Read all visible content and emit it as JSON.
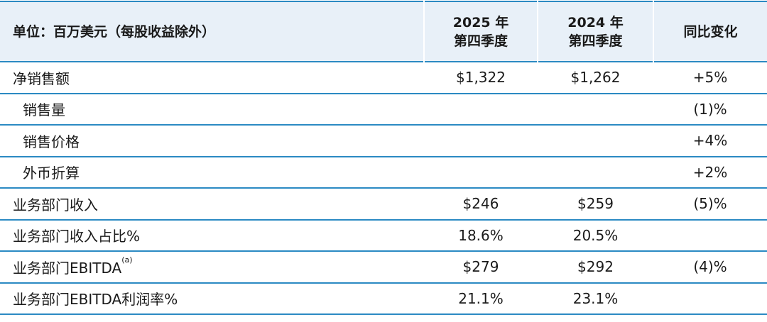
{
  "header": {
    "unit_label": "单位：百万美元（每股收益除外）",
    "col1": [
      "2025 年",
      "第四季度"
    ],
    "col2": [
      "2024 年",
      "第四季度"
    ],
    "col3": "同比变化"
  },
  "rows": [
    {
      "label": "净销售额",
      "q4_2025": "$1,322",
      "q4_2024": "$1,262",
      "change": "+5%"
    },
    {
      "label": "销售量",
      "q4_2025": "",
      "q4_2024": "",
      "change": "(1)%"
    },
    {
      "label": "销售价格",
      "q4_2025": "",
      "q4_2024": "",
      "change": "+4%"
    },
    {
      "label": "外币折算",
      "q4_2025": "",
      "q4_2024": "",
      "change": "+2%"
    },
    {
      "label": "业务部门收入",
      "q4_2025": "$246",
      "q4_2024": "$259",
      "change": "(5)%"
    },
    {
      "label": "业务部门收入占比%",
      "q4_2025": "18.6%",
      "q4_2024": "20.5%",
      "change": ""
    },
    {
      "label": "业务部门EBITDA",
      "footnote": "(a)",
      "q4_2025": "$279",
      "q4_2024": "$292",
      "change": "(4)%"
    },
    {
      "label": "业务部门EBITDA利润率%",
      "q4_2025": "21.1%",
      "q4_2024": "23.1%",
      "change": ""
    }
  ],
  "colors": {
    "header_bg": "#e8f0f8",
    "rule": "#2b8ac3"
  }
}
